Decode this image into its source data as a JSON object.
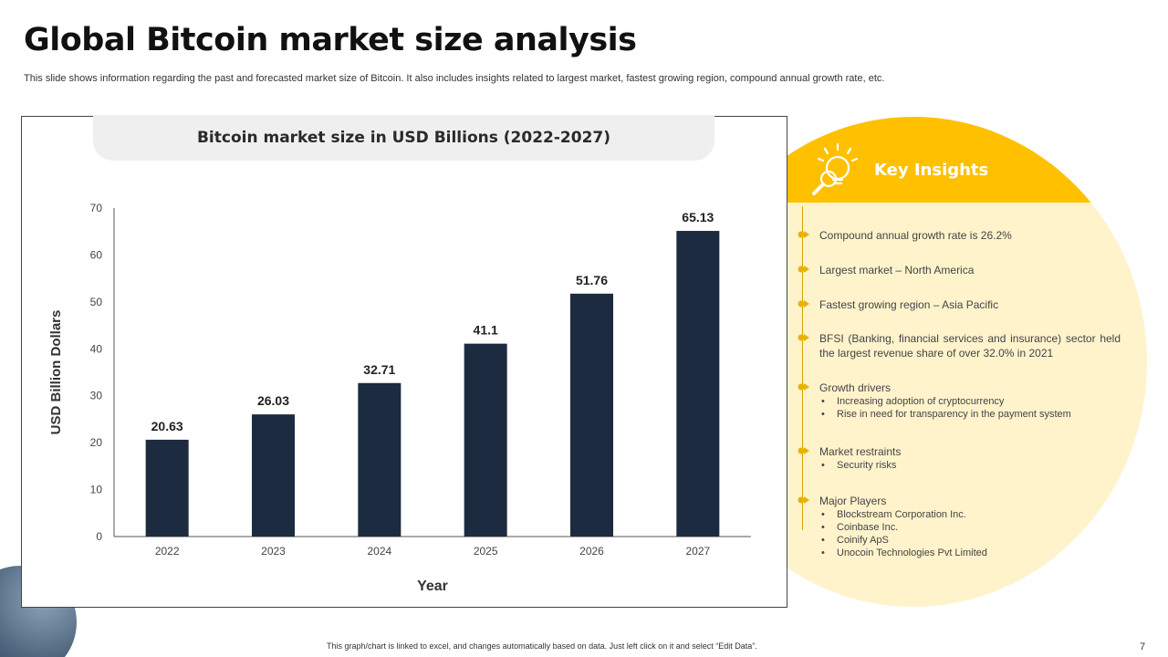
{
  "page": {
    "title": "Global Bitcoin market size analysis",
    "subtitle": "This slide shows information regarding the past and forecasted market size of Bitcoin. It also includes insights related to largest market, fastest growing region, compound annual growth rate, etc.",
    "footer": "This graph/chart is linked to excel, and changes automatically based on data. Just left click on it and select “Edit Data”.",
    "page_number": "7"
  },
  "colors": {
    "bar": "#1c2b3f",
    "accent": "#ffc000",
    "insight_bg": "#fff3cc"
  },
  "chart_data": {
    "type": "bar",
    "title": "Bitcoin market size in USD Billions (2022-2027)",
    "categories": [
      "2022",
      "2023",
      "2024",
      "2025",
      "2026",
      "2027"
    ],
    "values": [
      20.63,
      26.03,
      32.71,
      41.1,
      51.76,
      65.13
    ],
    "value_labels": [
      "20.63",
      "26.03",
      "32.71",
      "41.1",
      "51.76",
      "65.13"
    ],
    "xlabel": "Year",
    "ylabel": "USD Billion Dollars",
    "ylim": [
      0,
      70
    ],
    "yticks": [
      "0",
      "10",
      "20",
      "30",
      "40",
      "50",
      "60",
      "70"
    ],
    "grid": false
  },
  "insights": {
    "title": "Key Insights",
    "items": [
      {
        "text": "Compound  annual  growth rate is 26.2%",
        "sub": []
      },
      {
        "text": "Largest market – North America",
        "sub": []
      },
      {
        "text": "Fastest growing region  – Asia Pacific",
        "sub": []
      },
      {
        "text": "BFSI (Banking, financial services and insurance) sector held the largest revenue  share of over  32.0% in 2021",
        "sub": []
      },
      {
        "text": "Growth drivers",
        "sub": [
          "Increasing adoption of cryptocurrency",
          "Rise in need for transparency in the payment system"
        ]
      },
      {
        "text": "Market restraints",
        "sub": [
          "Security risks"
        ]
      },
      {
        "text": "Major Players",
        "sub": [
          "Blockstream Corporation Inc.",
          "Coinbase Inc.",
          "Coinify ApS",
          "Unocoin Technologies Pvt Limited"
        ]
      }
    ]
  }
}
